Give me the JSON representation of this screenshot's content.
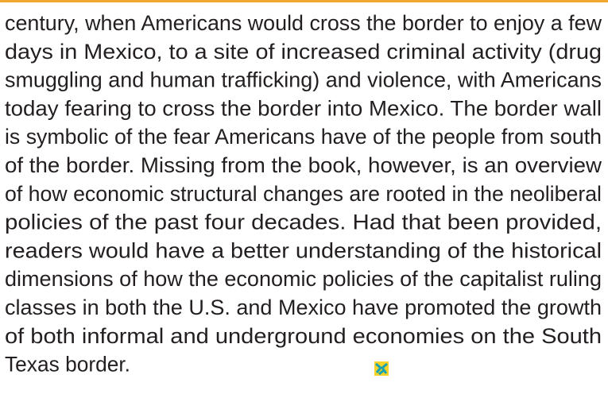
{
  "body": {
    "lines": [
      "century, when Americans would cross the border to enjoy a few",
      "days in Mexico, to a site of increased criminal activity (drug",
      "smuggling and human trafficking) and violence, with Americans",
      "today fearing to cross the border into Mexico.  The border wall",
      "is symbolic of the fear Americans have of the people from south",
      "of the border.  Missing from the book, however, is an overview",
      "of how economic structural changes are rooted in the neoliberal",
      "policies of the past four decades.  Had that been provided,",
      "readers would have a better understanding of the historical",
      "dimensions of how the economic policies of the capitalist ruling",
      "classes in both the U.S. and Mexico have promoted the growth",
      "of both informal and underground economies on the South",
      "Texas border."
    ]
  }
}
